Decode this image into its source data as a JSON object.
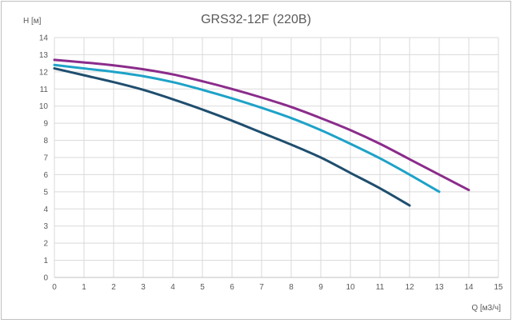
{
  "chart_data": {
    "type": "line",
    "title": "GRS32-12F (220В)",
    "xlabel": "Q [м3/ч]",
    "ylabel": "H [м]",
    "xlim": [
      0,
      15
    ],
    "ylim": [
      0,
      14
    ],
    "x_ticks": [
      "0",
      "1",
      "2",
      "3",
      "4",
      "5",
      "6",
      "7",
      "8",
      "9",
      "10",
      "11",
      "12",
      "13",
      "14",
      "15"
    ],
    "y_ticks": [
      "0",
      "1",
      "2",
      "3",
      "4",
      "5",
      "6",
      "7",
      "8",
      "9",
      "10",
      "11",
      "12",
      "13",
      "14"
    ],
    "grid": true,
    "colors": [
      "#1f4e6e",
      "#1ea2c8",
      "#8b2c8b"
    ],
    "series": [
      {
        "x": [
          0,
          1,
          2,
          3,
          4,
          5,
          6,
          7,
          8,
          9,
          10,
          11,
          12
        ],
        "y": [
          12.2,
          11.8,
          11.4,
          10.95,
          10.4,
          9.8,
          9.15,
          8.45,
          7.75,
          7.0,
          6.1,
          5.2,
          4.2
        ]
      },
      {
        "x": [
          0,
          1,
          2,
          3,
          4,
          5,
          6,
          7,
          8,
          9,
          10,
          11,
          12,
          13
        ],
        "y": [
          12.4,
          12.2,
          12.0,
          11.75,
          11.4,
          10.95,
          10.45,
          9.9,
          9.3,
          8.6,
          7.8,
          6.95,
          6.0,
          5.0
        ]
      },
      {
        "x": [
          0,
          1,
          2,
          3,
          4,
          5,
          6,
          7,
          8,
          9,
          10,
          11,
          12,
          13,
          14
        ],
        "y": [
          12.7,
          12.55,
          12.38,
          12.15,
          11.85,
          11.45,
          11.0,
          10.5,
          9.95,
          9.3,
          8.6,
          7.8,
          6.9,
          6.0,
          5.1
        ]
      }
    ]
  }
}
